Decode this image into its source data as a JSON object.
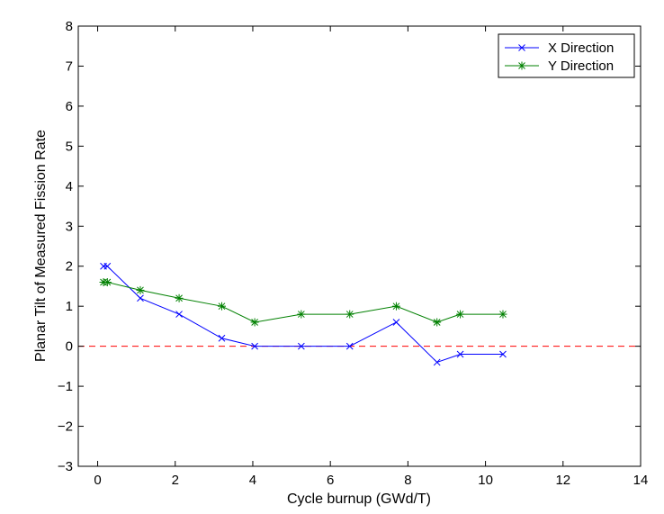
{
  "chart_data": {
    "type": "line",
    "title": "",
    "xlabel": "Cycle burnup (GWd/T)",
    "ylabel": "Planar Tilt of Measured Fission Rate",
    "xlim": [
      -0.5,
      14
    ],
    "ylim": [
      -3,
      8
    ],
    "xticks": [
      0,
      2,
      4,
      6,
      8,
      10,
      12,
      14
    ],
    "yticks": [
      -3,
      -2,
      -1,
      0,
      1,
      2,
      3,
      4,
      5,
      6,
      7,
      8
    ],
    "xtick_labels": [
      "0",
      "2",
      "4",
      "6",
      "8",
      "10",
      "12",
      "14"
    ],
    "ytick_labels": [
      "−3",
      "−2",
      "−1",
      "0",
      "1",
      "2",
      "3",
      "4",
      "5",
      "6",
      "7",
      "8"
    ],
    "grid": false,
    "legend_position": "top-right",
    "series": [
      {
        "name": "X Direction",
        "color": "#0000ff",
        "marker": "x",
        "x": [
          0.15,
          0.25,
          1.1,
          2.1,
          3.2,
          4.05,
          5.25,
          6.5,
          7.7,
          8.75,
          9.35,
          10.45
        ],
        "y": [
          2.0,
          2.0,
          1.2,
          0.8,
          0.2,
          0.0,
          0.0,
          0.0,
          0.6,
          -0.4,
          -0.2,
          -0.2
        ]
      },
      {
        "name": "Y Direction",
        "color": "#008000",
        "marker": "asterisk",
        "x": [
          0.15,
          0.25,
          1.1,
          2.1,
          3.2,
          4.05,
          5.25,
          6.5,
          7.7,
          8.75,
          9.35,
          10.45
        ],
        "y": [
          1.6,
          1.6,
          1.4,
          1.2,
          1.0,
          0.6,
          0.8,
          0.8,
          1.0,
          0.6,
          0.8,
          0.8
        ]
      }
    ],
    "reference_line": {
      "y": 0,
      "color": "#ff0000",
      "style": "dashed"
    }
  }
}
